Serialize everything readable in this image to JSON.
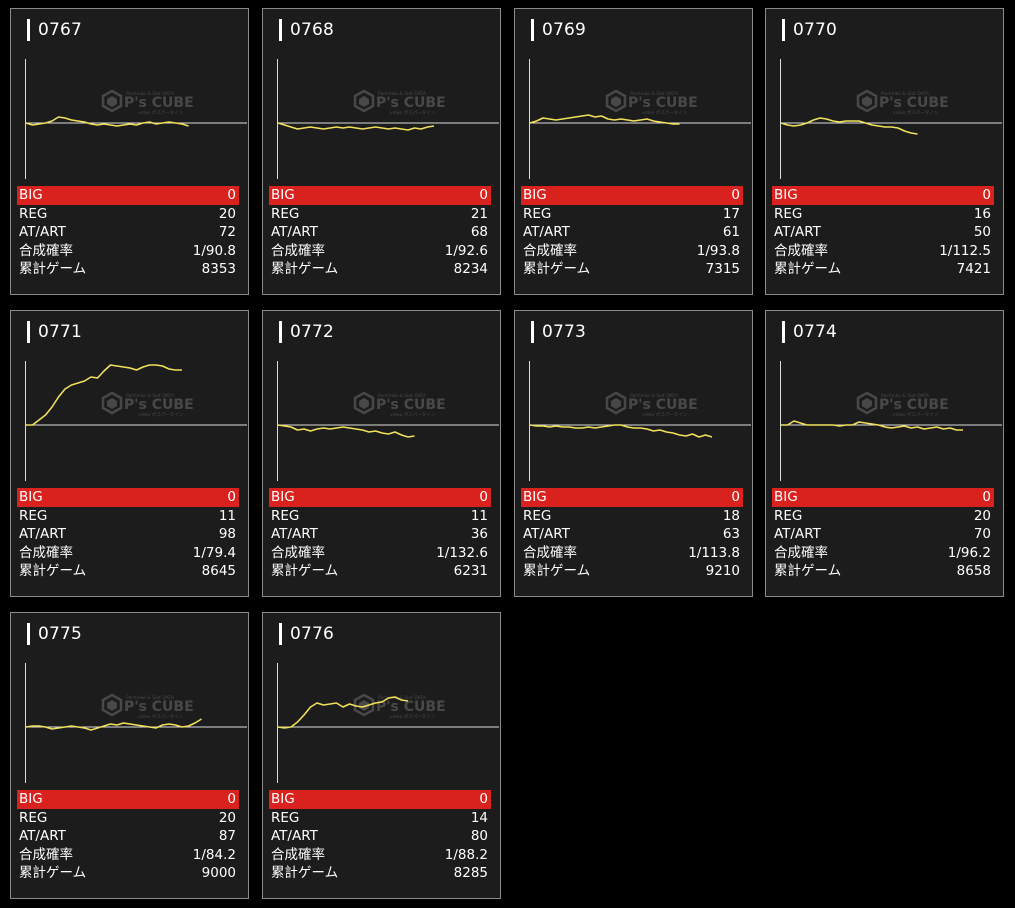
{
  "labels": {
    "big": "BIG",
    "reg": "REG",
    "at_art": "AT/ART",
    "combined_rate": "合成確率",
    "total_games": "累計ゲーム"
  },
  "watermark": {
    "brand": "P's CUBE",
    "tagline": "Pachinko & Slot DATA",
    "sub": "video ポスパータイン"
  },
  "colors": {
    "background": "#000000",
    "card": "#1c1c1c",
    "card_border": "#8a8a8a",
    "big_row": "#d9211d",
    "graph_line": "#f0e05a",
    "axis": "#dcdcdc"
  },
  "machines": [
    {
      "number": "0767",
      "big": "0",
      "reg": "20",
      "at_art": "72",
      "combined_rate": "1/90.8",
      "total_games": "8353",
      "graph": [
        0,
        -2,
        -1,
        0,
        2,
        6,
        5,
        3,
        2,
        1,
        -1,
        -2,
        -1,
        -2,
        -3,
        -2,
        -1,
        -2,
        0,
        1,
        -1,
        0,
        1,
        0,
        -1,
        -3
      ]
    },
    {
      "number": "0768",
      "big": "0",
      "reg": "21",
      "at_art": "68",
      "combined_rate": "1/92.6",
      "total_games": "8234",
      "graph": [
        0,
        -2,
        -4,
        -6,
        -5,
        -4,
        -5,
        -6,
        -5,
        -4,
        -5,
        -4,
        -5,
        -6,
        -5,
        -4,
        -5,
        -6,
        -5,
        -6,
        -7,
        -5,
        -6,
        -4,
        -3
      ]
    },
    {
      "number": "0769",
      "big": "0",
      "reg": "17",
      "at_art": "61",
      "combined_rate": "1/93.8",
      "total_games": "7315",
      "graph": [
        0,
        2,
        5,
        4,
        3,
        4,
        5,
        6,
        7,
        8,
        6,
        7,
        4,
        3,
        4,
        3,
        2,
        3,
        4,
        2,
        1,
        0,
        -1,
        -1
      ]
    },
    {
      "number": "0770",
      "big": "0",
      "reg": "16",
      "at_art": "50",
      "combined_rate": "1/112.5",
      "total_games": "7421",
      "graph": [
        0,
        -2,
        -3,
        -2,
        0,
        3,
        5,
        4,
        2,
        1,
        2,
        2,
        2,
        0,
        -2,
        -3,
        -4,
        -4,
        -5,
        -8,
        -10,
        -11
      ]
    },
    {
      "number": "0771",
      "big": "0",
      "reg": "11",
      "at_art": "98",
      "combined_rate": "1/79.4",
      "total_games": "8645",
      "graph": [
        0,
        0,
        5,
        10,
        18,
        28,
        36,
        40,
        42,
        44,
        48,
        47,
        54,
        60,
        59,
        58,
        57,
        55,
        58,
        60,
        60,
        59,
        56,
        55,
        55
      ]
    },
    {
      "number": "0772",
      "big": "0",
      "reg": "11",
      "at_art": "36",
      "combined_rate": "1/132.6",
      "total_games": "6231",
      "graph": [
        0,
        -1,
        -2,
        -5,
        -4,
        -6,
        -4,
        -3,
        -4,
        -3,
        -2,
        -3,
        -4,
        -5,
        -7,
        -6,
        -8,
        -9,
        -7,
        -10,
        -12,
        -11
      ]
    },
    {
      "number": "0773",
      "big": "0",
      "reg": "18",
      "at_art": "63",
      "combined_rate": "1/113.8",
      "total_games": "9210",
      "graph": [
        0,
        -1,
        -1,
        -2,
        -1,
        -2,
        -2,
        -3,
        -3,
        -2,
        -3,
        -2,
        -1,
        0,
        0,
        -2,
        -3,
        -3,
        -4,
        -6,
        -5,
        -7,
        -8,
        -10,
        -11,
        -9,
        -12,
        -10,
        -12
      ]
    },
    {
      "number": "0774",
      "big": "0",
      "reg": "20",
      "at_art": "70",
      "combined_rate": "1/96.2",
      "total_games": "8658",
      "graph": [
        0,
        0,
        4,
        2,
        0,
        0,
        0,
        0,
        0,
        -1,
        0,
        0,
        3,
        2,
        1,
        0,
        -2,
        -3,
        -2,
        -1,
        -3,
        -2,
        -4,
        -3,
        -2,
        -4,
        -3,
        -5,
        -5
      ]
    },
    {
      "number": "0775",
      "big": "0",
      "reg": "20",
      "at_art": "87",
      "combined_rate": "1/84.2",
      "total_games": "9000",
      "graph": [
        0,
        1,
        1,
        0,
        -2,
        -1,
        0,
        1,
        0,
        -1,
        -3,
        -1,
        1,
        3,
        2,
        4,
        3,
        2,
        1,
        0,
        -1,
        2,
        3,
        2,
        0,
        1,
        4,
        8
      ]
    },
    {
      "number": "0776",
      "big": "0",
      "reg": "14",
      "at_art": "80",
      "combined_rate": "1/88.2",
      "total_games": "8285",
      "graph": [
        0,
        -1,
        0,
        5,
        12,
        20,
        24,
        22,
        23,
        24,
        20,
        23,
        21,
        20,
        22,
        24,
        25,
        29,
        30,
        27,
        26
      ]
    }
  ]
}
